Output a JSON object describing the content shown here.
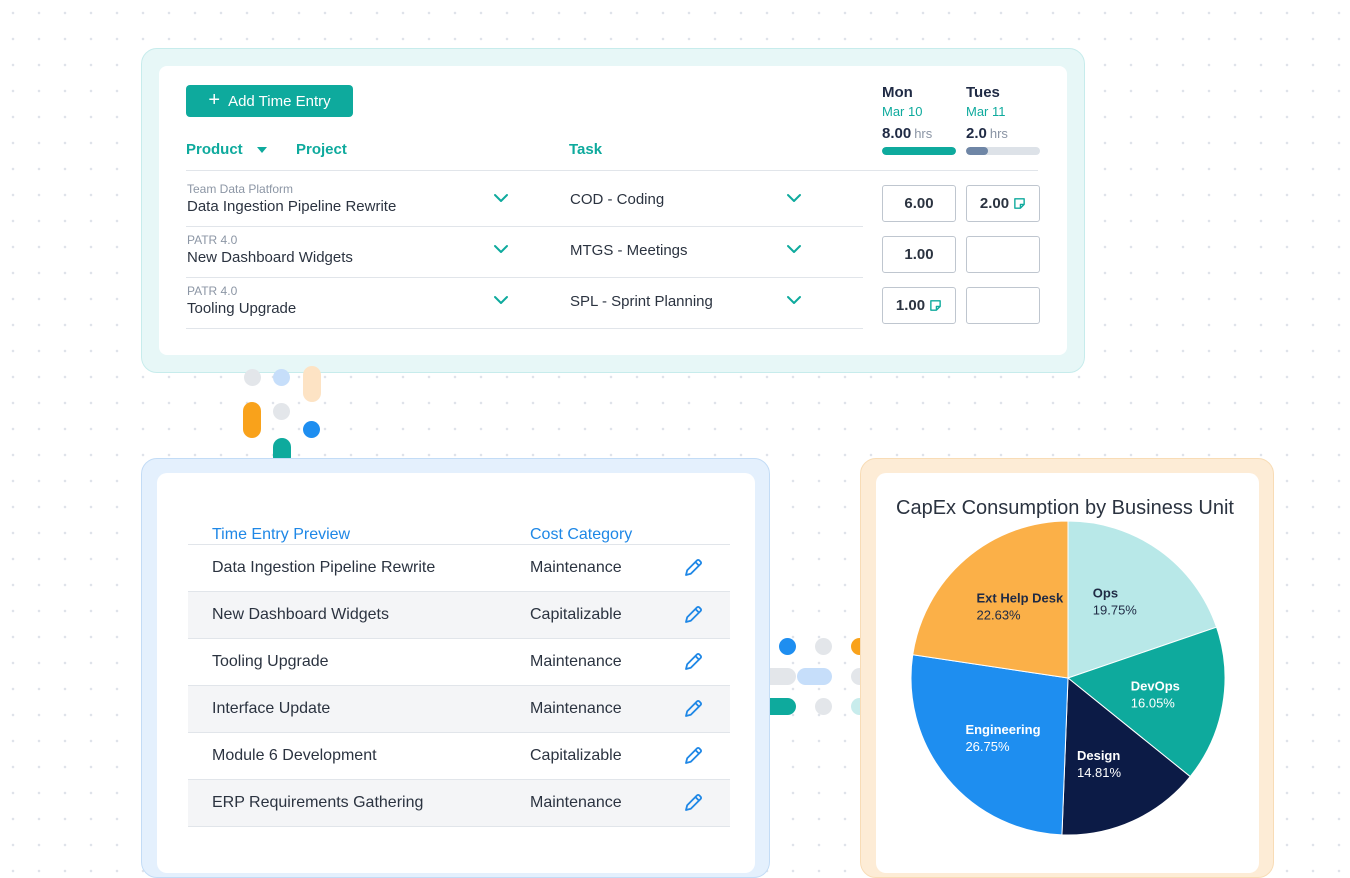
{
  "time_entry": {
    "add_button_label": "Add Time Entry",
    "columns": {
      "product": "Product",
      "project": "Project",
      "task": "Task"
    },
    "days": [
      {
        "name": "Mon",
        "date": "Mar 10",
        "hours": "8.00",
        "unit": "hrs",
        "progress": 1.0,
        "bar_color": "#0eaa9d"
      },
      {
        "name": "Tues",
        "date": "Mar 11",
        "hours": "2.0",
        "unit": "hrs",
        "progress": 0.3,
        "bar_color": "#6f86a6"
      }
    ],
    "rows": [
      {
        "product": "Team Data Platform",
        "project": "Data Ingestion Pipeline Rewrite",
        "task": "COD - Coding",
        "mon": "6.00",
        "tue": "2.00",
        "mon_note": false,
        "tue_note": true
      },
      {
        "product": "PATR 4.0",
        "project": "New Dashboard Widgets",
        "task": "MTGS - Meetings",
        "mon": "1.00",
        "tue": "",
        "mon_note": false,
        "tue_note": false
      },
      {
        "product": "PATR 4.0",
        "project": "Tooling Upgrade",
        "task": "SPL - Sprint Planning",
        "mon": "1.00",
        "tue": "",
        "mon_note": true,
        "tue_note": false
      }
    ]
  },
  "preview": {
    "header_name": "Time Entry Preview",
    "header_category": "Cost Category",
    "rows": [
      {
        "name": "Data Ingestion Pipeline Rewrite",
        "category": "Maintenance"
      },
      {
        "name": "New Dashboard Widgets",
        "category": "Capitalizable"
      },
      {
        "name": "Tooling Upgrade",
        "category": "Maintenance"
      },
      {
        "name": "Interface Update",
        "category": "Maintenance"
      },
      {
        "name": "Module 6 Development",
        "category": "Capitalizable"
      },
      {
        "name": "ERP Requirements Gathering",
        "category": "Maintenance"
      }
    ]
  },
  "chart_data": {
    "type": "pie",
    "title": "CapEx Consumption by Business Unit",
    "slices": [
      {
        "label": "Ops",
        "value": 19.75,
        "display": "19.75%",
        "color": "#b8e8e8",
        "text_color": "#1f2a44"
      },
      {
        "label": "DevOps",
        "value": 16.05,
        "display": "16.05%",
        "color": "#0eaa9d",
        "text_color": "#ffffff"
      },
      {
        "label": "Design",
        "value": 14.81,
        "display": "14.81%",
        "color": "#0c1b46",
        "text_color": "#ffffff"
      },
      {
        "label": "Engineering",
        "value": 26.75,
        "display": "26.75%",
        "color": "#1e8ef0",
        "text_color": "#ffffff"
      },
      {
        "label": "Ext Help Desk",
        "value": 22.63,
        "display": "22.63%",
        "color": "#fbb048",
        "text_color": "#1f2a44"
      }
    ]
  }
}
